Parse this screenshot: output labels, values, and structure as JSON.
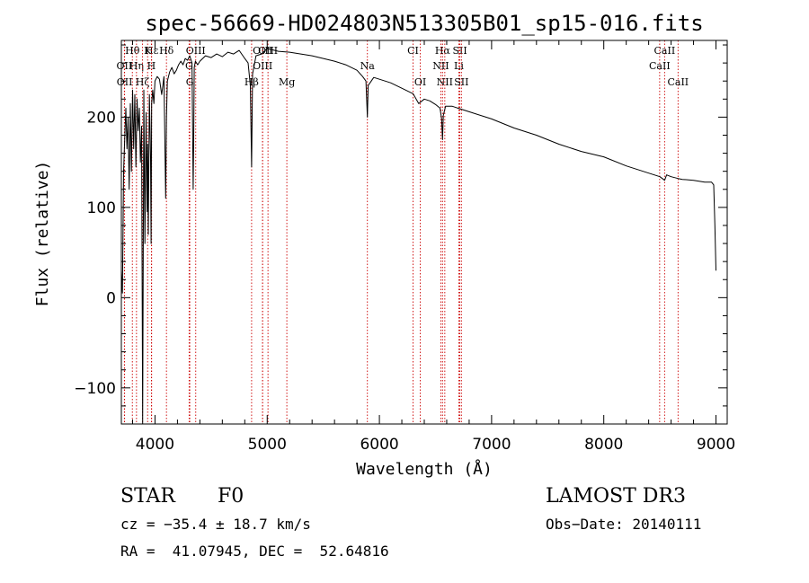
{
  "chart_data": {
    "type": "line",
    "title": "spec-56669-HD024803N513305B01_sp15-016.fits",
    "xlabel": "Wavelength (Å)",
    "ylabel": "Flux (relative)",
    "xlim": [
      3700,
      9100
    ],
    "ylim": [
      -140,
      285
    ],
    "xticks": [
      4000,
      5000,
      6000,
      7000,
      8000,
      9000
    ],
    "yticks": [
      -100,
      0,
      100,
      200
    ],
    "xtick_labels": [
      "4000",
      "5000",
      "6000",
      "7000",
      "8000",
      "9000"
    ],
    "ytick_labels": [
      "−100",
      "0",
      "100",
      "200"
    ],
    "grid": false,
    "series": [
      {
        "name": "flux",
        "x": [
          3700,
          3710,
          3720,
          3730,
          3740,
          3750,
          3760,
          3770,
          3780,
          3790,
          3800,
          3810,
          3820,
          3830,
          3840,
          3850,
          3860,
          3870,
          3880,
          3890,
          3900,
          3910,
          3920,
          3930,
          3935,
          3940,
          3950,
          3960,
          3965,
          3970,
          3980,
          3990,
          4000,
          4020,
          4040,
          4060,
          4080,
          4095,
          4102,
          4110,
          4130,
          4150,
          4170,
          4190,
          4210,
          4230,
          4250,
          4270,
          4290,
          4310,
          4330,
          4340,
          4345,
          4350,
          4360,
          4380,
          4400,
          4450,
          4500,
          4550,
          4600,
          4650,
          4700,
          4750,
          4800,
          4830,
          4850,
          4861,
          4870,
          4900,
          4950,
          5000,
          5100,
          5200,
          5300,
          5400,
          5500,
          5600,
          5700,
          5800,
          5850,
          5880,
          5893,
          5900,
          5950,
          6000,
          6100,
          6200,
          6300,
          6350,
          6400,
          6450,
          6500,
          6540,
          6555,
          6563,
          6570,
          6590,
          6650,
          6700,
          6800,
          7000,
          7200,
          7400,
          7600,
          7800,
          8000,
          8200,
          8400,
          8500,
          8542,
          8560,
          8600,
          8662,
          8700,
          8800,
          8900,
          8960,
          8980,
          8990,
          9000
        ],
        "values": [
          30,
          5,
          140,
          175,
          210,
          165,
          200,
          120,
          215,
          140,
          230,
          165,
          225,
          145,
          220,
          185,
          210,
          150,
          190,
          -140,
          230,
          60,
          205,
          95,
          170,
          70,
          225,
          155,
          60,
          215,
          230,
          215,
          240,
          245,
          242,
          225,
          245,
          110,
          200,
          240,
          250,
          255,
          248,
          252,
          258,
          262,
          258,
          265,
          263,
          268,
          260,
          120,
          175,
          255,
          262,
          258,
          262,
          268,
          266,
          270,
          267,
          272,
          270,
          274,
          265,
          260,
          235,
          145,
          248,
          268,
          270,
          276,
          273,
          272,
          270,
          268,
          265,
          262,
          258,
          252,
          245,
          240,
          200,
          235,
          244,
          242,
          238,
          232,
          226,
          215,
          220,
          218,
          214,
          210,
          198,
          175,
          202,
          212,
          212,
          210,
          206,
          198,
          188,
          180,
          170,
          162,
          156,
          146,
          138,
          134,
          130,
          136,
          134,
          132,
          131,
          130,
          128,
          128,
          125,
          80,
          30
        ]
      }
    ],
    "spectral_lines": [
      {
        "label": "Hθ",
        "wave": 3798,
        "row": 0
      },
      {
        "label": "K",
        "wave": 3934,
        "row": 0
      },
      {
        "label": "Hε",
        "wave": 3970,
        "row": 0
      },
      {
        "label": "Hδ",
        "wave": 4102,
        "row": 0
      },
      {
        "label": "OIII",
        "wave": 4363,
        "row": 0
      },
      {
        "label": "OIII",
        "wave": 4959,
        "row": 0
      },
      {
        "label": "OIII",
        "wave": 5007,
        "row": 0
      },
      {
        "label": "CI",
        "wave": 6300,
        "row": 0
      },
      {
        "label": "Hα",
        "wave": 6563,
        "row": 0
      },
      {
        "label": "SII",
        "wave": 6717,
        "row": 0
      },
      {
        "label": "CaII",
        "wave": 8542,
        "row": 0
      },
      {
        "label": "OII",
        "wave": 3727,
        "row": 1
      },
      {
        "label": "Hη",
        "wave": 3835,
        "row": 1
      },
      {
        "label": "H",
        "wave": 3968,
        "row": 1
      },
      {
        "label": "G",
        "wave": 4304,
        "row": 1
      },
      {
        "label": "OIII",
        "wave": 4959,
        "row": 1
      },
      {
        "label": "Na",
        "wave": 5893,
        "row": 1
      },
      {
        "label": "NII",
        "wave": 6548,
        "row": 1
      },
      {
        "label": "Li",
        "wave": 6708,
        "row": 1
      },
      {
        "label": "CaII",
        "wave": 8498,
        "row": 1
      },
      {
        "label": "OII",
        "wave": 3729,
        "row": 2
      },
      {
        "label": "Hζ",
        "wave": 3889,
        "row": 2
      },
      {
        "label": "G",
        "wave": 4310,
        "row": 2
      },
      {
        "label": "Hβ",
        "wave": 4861,
        "row": 2
      },
      {
        "label": "Mg",
        "wave": 5175,
        "row": 2
      },
      {
        "label": "OI",
        "wave": 6364,
        "row": 2
      },
      {
        "label": "NII",
        "wave": 6583,
        "row": 2
      },
      {
        "label": "SII",
        "wave": 6731,
        "row": 2
      },
      {
        "label": "CaII",
        "wave": 8662,
        "row": 2
      }
    ]
  },
  "info": {
    "class_label": "STAR",
    "subclass": "F0",
    "survey": "LAMOST DR3",
    "cz": "cz = −35.4 ± 18.7 km/s",
    "obs_date": "Obs−Date: 20140111",
    "coords": "RA =  41.07945, DEC =  52.64816"
  },
  "colors": {
    "axis": "#000000",
    "spectrum": "#000000",
    "line_markers": "#cc0000"
  }
}
